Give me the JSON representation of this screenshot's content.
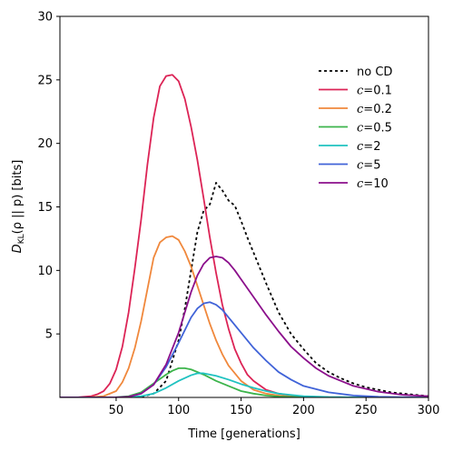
{
  "chart_data": {
    "type": "line",
    "title": "",
    "xlabel": "Time [generations]",
    "ylabel_parts": {
      "D": "D",
      "sub": "KL",
      "rest": "(ρ || p) [bits]"
    },
    "xlim": [
      5,
      300
    ],
    "ylim": [
      0,
      30
    ],
    "xticks": [
      "50",
      "100",
      "150",
      "200",
      "250",
      "300"
    ],
    "yticks": [
      "5",
      "10",
      "15",
      "20",
      "25",
      "30"
    ],
    "grid": false,
    "legend_position": "upper-right",
    "series": [
      {
        "name": "no CD",
        "name_math": false,
        "color": "#000000",
        "dash": "dotted",
        "x": [
          5,
          30,
          50,
          60,
          70,
          80,
          90,
          100,
          105,
          110,
          115,
          120,
          125,
          130,
          135,
          140,
          145,
          150,
          155,
          160,
          170,
          180,
          190,
          200,
          210,
          220,
          230,
          240,
          250,
          260,
          270,
          280,
          290,
          300
        ],
        "y": [
          0,
          0,
          0,
          0,
          0.05,
          0.3,
          1.3,
          4.5,
          7.0,
          10.0,
          13.0,
          14.7,
          15.2,
          16.9,
          16.3,
          15.5,
          15.1,
          13.9,
          12.6,
          11.4,
          9.0,
          6.7,
          5.0,
          3.8,
          2.7,
          2.0,
          1.5,
          1.1,
          0.8,
          0.6,
          0.4,
          0.3,
          0.2,
          0.1
        ]
      },
      {
        "name": "c=0.1",
        "name_math": true,
        "c_value": "0.1",
        "color": "#dc2456",
        "dash": "solid",
        "x": [
          5,
          20,
          30,
          35,
          40,
          45,
          50,
          55,
          60,
          65,
          70,
          75,
          80,
          85,
          90,
          95,
          100,
          105,
          110,
          115,
          120,
          125,
          130,
          135,
          140,
          145,
          150,
          155,
          160,
          170,
          180,
          190,
          200,
          220,
          250,
          300
        ],
        "y": [
          0,
          0.02,
          0.1,
          0.25,
          0.5,
          1.1,
          2.2,
          4.0,
          6.7,
          10.2,
          14.0,
          18.3,
          22.0,
          24.5,
          25.3,
          25.4,
          24.9,
          23.5,
          21.3,
          18.7,
          15.7,
          12.6,
          9.8,
          7.3,
          5.4,
          3.8,
          2.7,
          1.8,
          1.3,
          0.6,
          0.3,
          0.15,
          0.07,
          0.02,
          0,
          0
        ]
      },
      {
        "name": "c=0.2",
        "name_math": true,
        "c_value": "0.2",
        "color": "#f0883c",
        "dash": "solid",
        "x": [
          5,
          30,
          40,
          50,
          55,
          60,
          65,
          70,
          75,
          80,
          85,
          90,
          95,
          100,
          105,
          110,
          115,
          120,
          125,
          130,
          135,
          140,
          150,
          160,
          170,
          180,
          190,
          200,
          220,
          250,
          300
        ],
        "y": [
          0,
          0.02,
          0.1,
          0.5,
          1.2,
          2.3,
          3.9,
          6.0,
          8.5,
          11.0,
          12.2,
          12.6,
          12.7,
          12.4,
          11.5,
          10.3,
          8.8,
          7.3,
          5.8,
          4.5,
          3.4,
          2.5,
          1.3,
          0.6,
          0.3,
          0.15,
          0.07,
          0.03,
          0,
          0,
          0
        ]
      },
      {
        "name": "c=0.5",
        "name_math": true,
        "c_value": "0.5",
        "color": "#3cb44b",
        "dash": "solid",
        "x": [
          5,
          50,
          60,
          70,
          80,
          90,
          95,
          100,
          105,
          110,
          120,
          130,
          140,
          150,
          160,
          170,
          180,
          200,
          250,
          300
        ],
        "y": [
          0,
          0.02,
          0.1,
          0.4,
          1.1,
          1.8,
          2.1,
          2.3,
          2.3,
          2.2,
          1.8,
          1.3,
          0.9,
          0.5,
          0.3,
          0.15,
          0.07,
          0.02,
          0,
          0
        ]
      },
      {
        "name": "c=2",
        "name_math": true,
        "c_value": "2",
        "color": "#1fc2c0",
        "dash": "solid",
        "x": [
          5,
          50,
          60,
          70,
          80,
          90,
          100,
          110,
          115,
          120,
          130,
          140,
          150,
          160,
          170,
          180,
          190,
          200,
          220,
          250,
          300
        ],
        "y": [
          0,
          0,
          0.02,
          0.1,
          0.3,
          0.75,
          1.3,
          1.75,
          1.9,
          1.9,
          1.7,
          1.4,
          1.05,
          0.75,
          0.5,
          0.3,
          0.2,
          0.1,
          0.03,
          0,
          0
        ]
      },
      {
        "name": "c=5",
        "name_math": true,
        "c_value": "5",
        "color": "#4063d8",
        "dash": "solid",
        "x": [
          5,
          50,
          60,
          70,
          80,
          90,
          100,
          105,
          110,
          115,
          120,
          125,
          130,
          135,
          140,
          150,
          160,
          170,
          180,
          190,
          200,
          220,
          240,
          260,
          280,
          300
        ],
        "y": [
          0,
          0,
          0.05,
          0.3,
          1.0,
          2.4,
          4.3,
          5.3,
          6.3,
          7.0,
          7.4,
          7.5,
          7.3,
          6.9,
          6.3,
          5.1,
          3.9,
          2.9,
          2.0,
          1.4,
          0.9,
          0.4,
          0.15,
          0.05,
          0.02,
          0
        ]
      },
      {
        "name": "c=10",
        "name_math": true,
        "c_value": "10",
        "color": "#8b0f8b",
        "dash": "solid",
        "x": [
          5,
          50,
          60,
          70,
          80,
          90,
          100,
          105,
          110,
          115,
          120,
          125,
          130,
          135,
          140,
          145,
          150,
          160,
          170,
          180,
          190,
          200,
          210,
          220,
          240,
          260,
          280,
          300
        ],
        "y": [
          0,
          0,
          0.05,
          0.3,
          1.0,
          2.6,
          5.1,
          6.7,
          8.3,
          9.6,
          10.5,
          11.0,
          11.1,
          11.0,
          10.6,
          10.0,
          9.3,
          7.9,
          6.5,
          5.2,
          4.0,
          3.1,
          2.3,
          1.7,
          0.9,
          0.45,
          0.2,
          0.1
        ]
      }
    ]
  }
}
